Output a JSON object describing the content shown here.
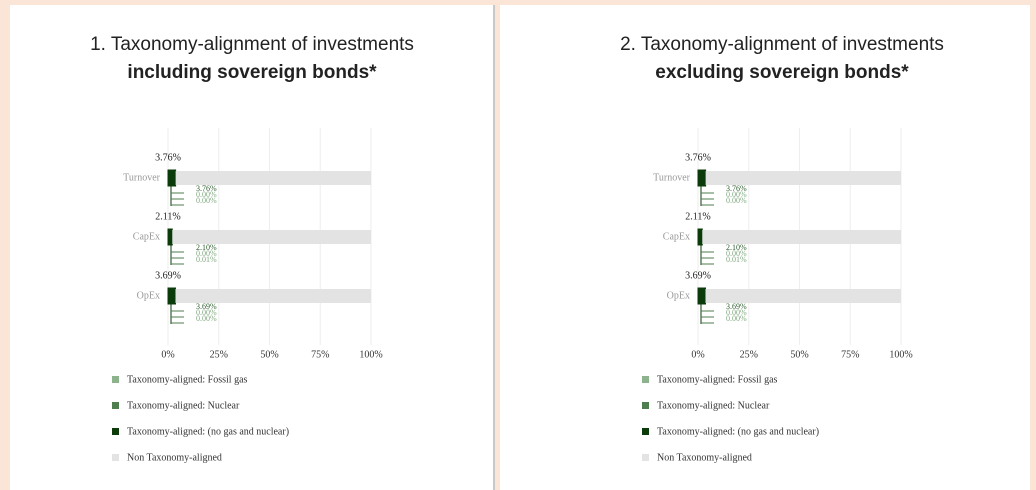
{
  "chart_data": [
    {
      "type": "bar",
      "orientation": "horizontal",
      "title": "1. Taxonomy-alignment of investments",
      "subtitle": "including sovereign bonds*",
      "categories": [
        "Turnover",
        "CapEx",
        "OpEx"
      ],
      "series": [
        {
          "name": "Taxonomy-aligned: Fossil gas",
          "color": "#8db38d",
          "values": [
            0.0,
            0.0,
            0.0
          ],
          "value_labels": [
            "0.00%",
            "0.00%",
            "0.00%"
          ]
        },
        {
          "name": "Taxonomy-aligned: Nuclear",
          "color": "#4e7d4e",
          "values": [
            0.0,
            0.01,
            0.0
          ],
          "value_labels": [
            "0.00%",
            "0.01%",
            "0.00%"
          ]
        },
        {
          "name": "Taxonomy-aligned: (no gas and nuclear)",
          "color": "#0b3b0b",
          "values": [
            3.76,
            2.1,
            3.69
          ],
          "value_labels": [
            "3.76%",
            "2.10%",
            "3.69%"
          ]
        },
        {
          "name": "Non Taxonomy-aligned",
          "color": "#e3e3e3",
          "values": [
            96.24,
            97.89,
            96.31
          ]
        }
      ],
      "totals": {
        "values": [
          3.76,
          2.11,
          3.69
        ],
        "value_labels": [
          "3.76%",
          "2.11%",
          "3.69%"
        ]
      },
      "xlim": [
        0,
        100
      ],
      "xticks": [
        {
          "value": 0,
          "label": "0%"
        },
        {
          "value": 25,
          "label": "25%"
        },
        {
          "value": 50,
          "label": "50%"
        },
        {
          "value": 75,
          "label": "75%"
        },
        {
          "value": 100,
          "label": "100%"
        }
      ],
      "grid": true
    },
    {
      "type": "bar",
      "orientation": "horizontal",
      "title": "2. Taxonomy-alignment of investments",
      "subtitle": "excluding sovereign bonds*",
      "categories": [
        "Turnover",
        "CapEx",
        "OpEx"
      ],
      "series": [
        {
          "name": "Taxonomy-aligned: Fossil gas",
          "color": "#8db38d",
          "values": [
            0.0,
            0.0,
            0.0
          ],
          "value_labels": [
            "0.00%",
            "0.00%",
            "0.00%"
          ]
        },
        {
          "name": "Taxonomy-aligned: Nuclear",
          "color": "#4e7d4e",
          "values": [
            0.0,
            0.01,
            0.0
          ],
          "value_labels": [
            "0.00%",
            "0.01%",
            "0.00%"
          ]
        },
        {
          "name": "Taxonomy-aligned: (no gas and nuclear)",
          "color": "#0b3b0b",
          "values": [
            3.76,
            2.1,
            3.69
          ],
          "value_labels": [
            "3.76%",
            "2.10%",
            "3.69%"
          ]
        },
        {
          "name": "Non Taxonomy-aligned",
          "color": "#e3e3e3",
          "values": [
            96.24,
            97.89,
            96.31
          ]
        }
      ],
      "totals": {
        "values": [
          3.76,
          2.11,
          3.69
        ],
        "value_labels": [
          "3.76%",
          "2.11%",
          "3.69%"
        ]
      },
      "xlim": [
        0,
        100
      ],
      "xticks": [
        {
          "value": 0,
          "label": "0%"
        },
        {
          "value": 25,
          "label": "25%"
        },
        {
          "value": 50,
          "label": "50%"
        },
        {
          "value": 75,
          "label": "75%"
        },
        {
          "value": 100,
          "label": "100%"
        }
      ],
      "grid": true
    }
  ]
}
